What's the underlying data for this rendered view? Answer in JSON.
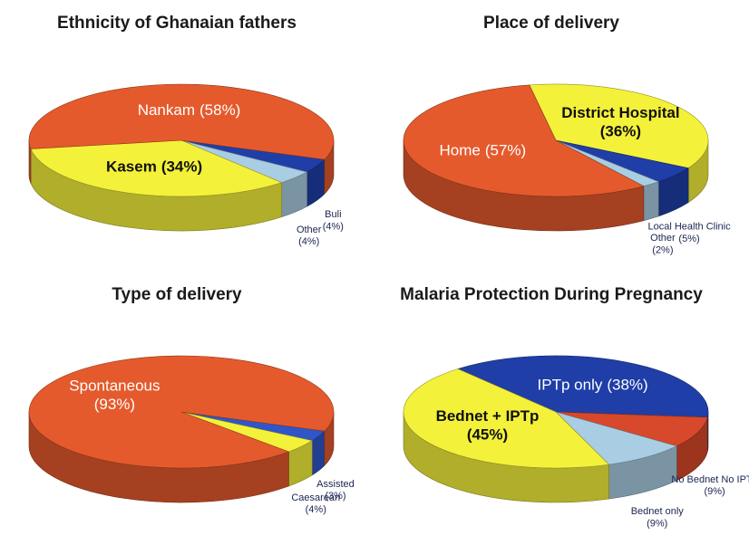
{
  "chart_data": [
    {
      "type": "pie",
      "title": "Ethnicity of Ghanaian fathers",
      "categories": [
        "Buli",
        "Other",
        "Kasem",
        "Nankam"
      ],
      "values": [
        4,
        4,
        34,
        58
      ],
      "value_labels": [
        "(4%)",
        "(4%)",
        "(34%)",
        "(58%)"
      ],
      "colors": [
        "#1f3ea8",
        "#a9cde3",
        "#f4f13a",
        "#e55a2c"
      ]
    },
    {
      "type": "pie",
      "title": "Place of delivery",
      "categories": [
        "District Hospital",
        "Local Health Clinic",
        "Other",
        "Home"
      ],
      "values": [
        36,
        5,
        2,
        57
      ],
      "value_labels": [
        "(36%)",
        "(5%)",
        "(2%)",
        "(57%)"
      ],
      "colors": [
        "#f4f13a",
        "#1f3ea8",
        "#a9cde3",
        "#e55a2c"
      ]
    },
    {
      "type": "pie",
      "title": "Type of delivery",
      "categories": [
        "Assisted",
        "Caesarean",
        "Spontaneous"
      ],
      "values": [
        3,
        4,
        93
      ],
      "value_labels": [
        "(3%)",
        "(4%)",
        "(93%)"
      ],
      "colors": [
        "#2f56c8",
        "#f4f13a",
        "#e55a2c"
      ]
    },
    {
      "type": "pie",
      "title": "Malaria Protection During Pregnancy",
      "categories": [
        "IPTp only",
        "No Bednet No IPTp",
        "Bednet only",
        "Bednet + IPTp"
      ],
      "values": [
        38,
        9,
        9,
        45
      ],
      "value_labels": [
        "(38%)",
        "(9%)",
        "(9%)",
        "(45%)"
      ],
      "colors": [
        "#1f3ea8",
        "#d8482a",
        "#a9cde3",
        "#f4f13a"
      ]
    }
  ]
}
